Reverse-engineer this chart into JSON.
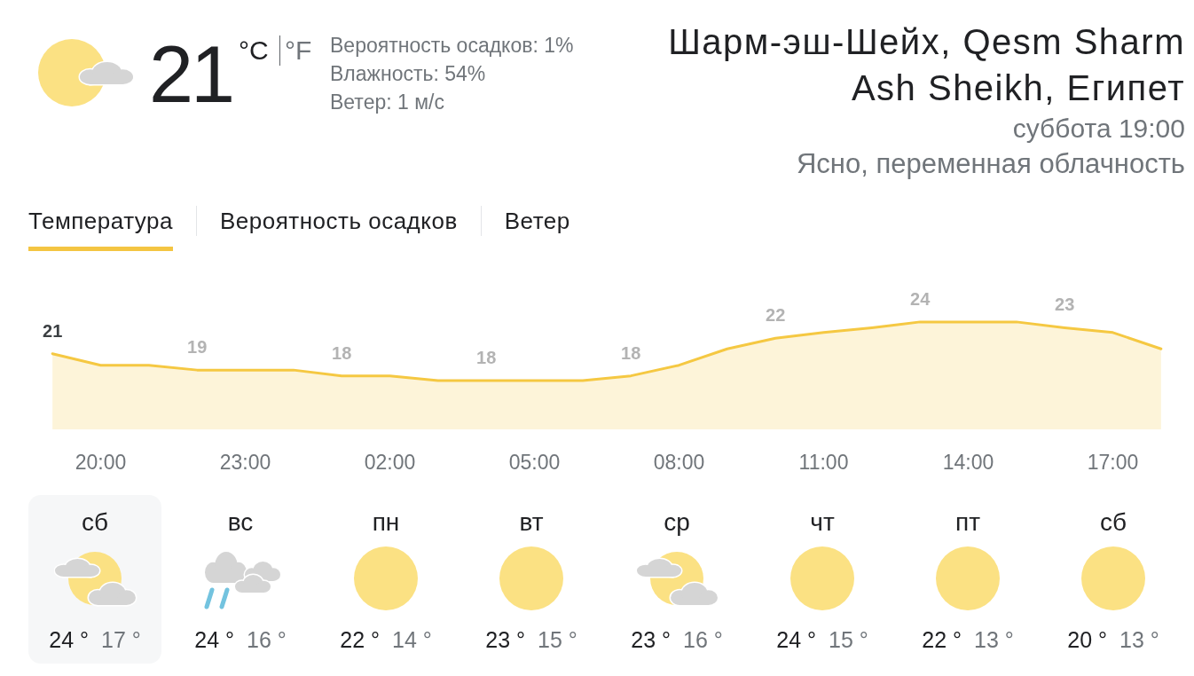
{
  "chart_data": [
    {
      "type": "area",
      "title": "Шарм-эш-Шейх, Qesm Sharm Ash Sheikh, Египет",
      "subtitle": "суббота 19:00",
      "annotations": [
        "21",
        "°C",
        "°F",
        "Вероятность осадков: 1%",
        "Влажность: 54%",
        "Ветер: 1 м/с",
        "Ясно, переменная облачность",
        "Температура",
        "Вероятность осадков",
        "Ветер"
      ],
      "categories": [
        null,
        "20:00",
        null,
        null,
        "23:00",
        null,
        null,
        "02:00",
        null,
        null,
        "05:00",
        null,
        null,
        "08:00",
        null,
        null,
        "11:00",
        null,
        null,
        "14:00",
        null,
        null,
        "17:00",
        null
      ],
      "values": [
        20.6,
        19.4,
        19.4,
        18.9,
        18.9,
        18.9,
        18.3,
        18.3,
        17.8,
        17.8,
        17.8,
        17.8,
        18.3,
        19.4,
        21.1,
        22.2,
        22.8,
        23.3,
        23.9,
        23.9,
        23.9,
        23.3,
        22.8,
        21.1
      ],
      "value_labels": [
        "21",
        null,
        null,
        "19",
        null,
        null,
        "18",
        null,
        null,
        "18",
        null,
        null,
        "18",
        null,
        null,
        "22",
        null,
        null,
        "24",
        null,
        null,
        "23",
        null,
        null
      ],
      "color": "#f5c842",
      "marker": "none",
      "tick_labels": "x"
    },
    {
      "type": "other",
      "categories": [
        "сб",
        "вс",
        "пн",
        "вт",
        "ср",
        "чт",
        "пт",
        "сб"
      ],
      "series": [
        {
          "values": [
            24,
            24,
            22,
            23,
            23,
            24,
            22,
            20
          ],
          "value_labels": [
            "24 °",
            "24 °",
            "22 °",
            "23 °",
            "23 °",
            "24 °",
            "22 °",
            "20 °"
          ]
        },
        {
          "values": [
            17,
            16,
            14,
            15,
            16,
            15,
            13,
            13
          ],
          "value_labels": [
            "17 °",
            "16 °",
            "14 °",
            "15 °",
            "16 °",
            "15 °",
            "13 °",
            "13 °"
          ]
        }
      ]
    }
  ]
}
